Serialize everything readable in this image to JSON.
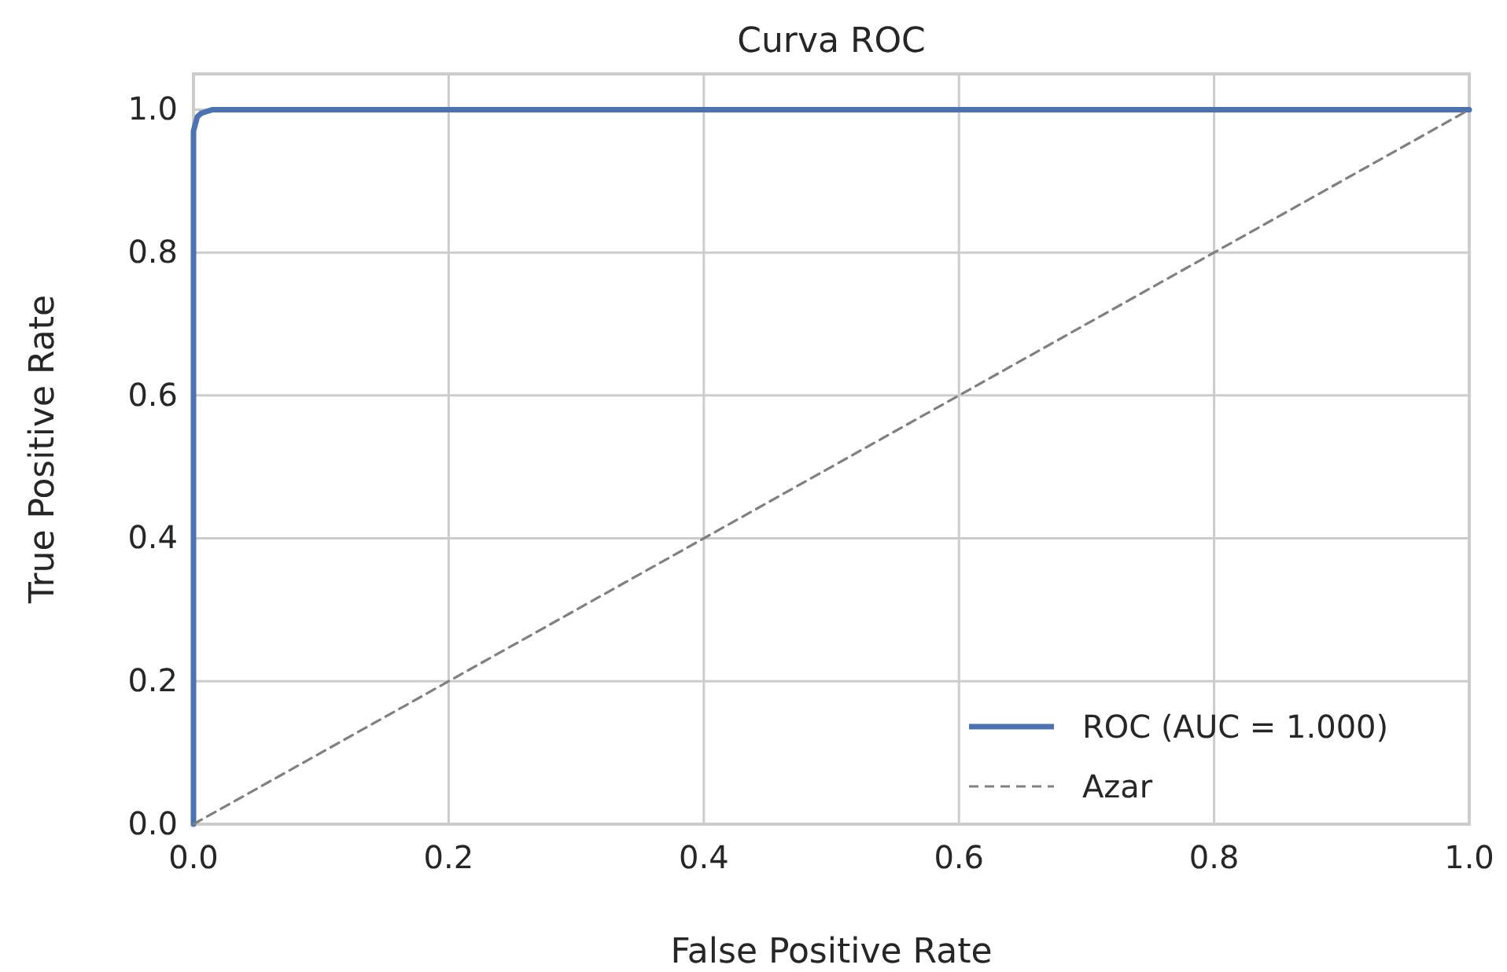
{
  "chart_data": {
    "type": "line",
    "title": "Curva ROC",
    "xlabel": "False Positive Rate",
    "ylabel": "True Positive Rate",
    "xlim": [
      0,
      1
    ],
    "ylim": [
      0,
      1.05
    ],
    "xticks": [
      {
        "value": 0,
        "label": "0.0"
      },
      {
        "value": 0.2,
        "label": "0.2"
      },
      {
        "value": 0.4,
        "label": "0.4"
      },
      {
        "value": 0.6,
        "label": "0.6"
      },
      {
        "value": 0.8,
        "label": "0.8"
      },
      {
        "value": 1,
        "label": "1.0"
      }
    ],
    "yticks": [
      {
        "value": 0,
        "label": "0.0"
      },
      {
        "value": 0.2,
        "label": "0.2"
      },
      {
        "value": 0.4,
        "label": "0.4"
      },
      {
        "value": 0.6,
        "label": "0.6"
      },
      {
        "value": 0.8,
        "label": "0.8"
      },
      {
        "value": 1,
        "label": "1.0"
      }
    ],
    "grid": true,
    "legend": "bottom right",
    "series": [
      {
        "name": "ROC (AUC = 1.000)",
        "color": "#4c72b0",
        "line_style": "solid",
        "x": [
          0,
          0,
          0.003,
          0.006,
          0.015,
          1
        ],
        "values": [
          0,
          0.97,
          0.99,
          0.995,
          1,
          1
        ]
      },
      {
        "name": "Azar",
        "color": "#808080",
        "line_style": "dashed",
        "x": [
          0,
          1
        ],
        "values": [
          0,
          1
        ]
      }
    ]
  }
}
